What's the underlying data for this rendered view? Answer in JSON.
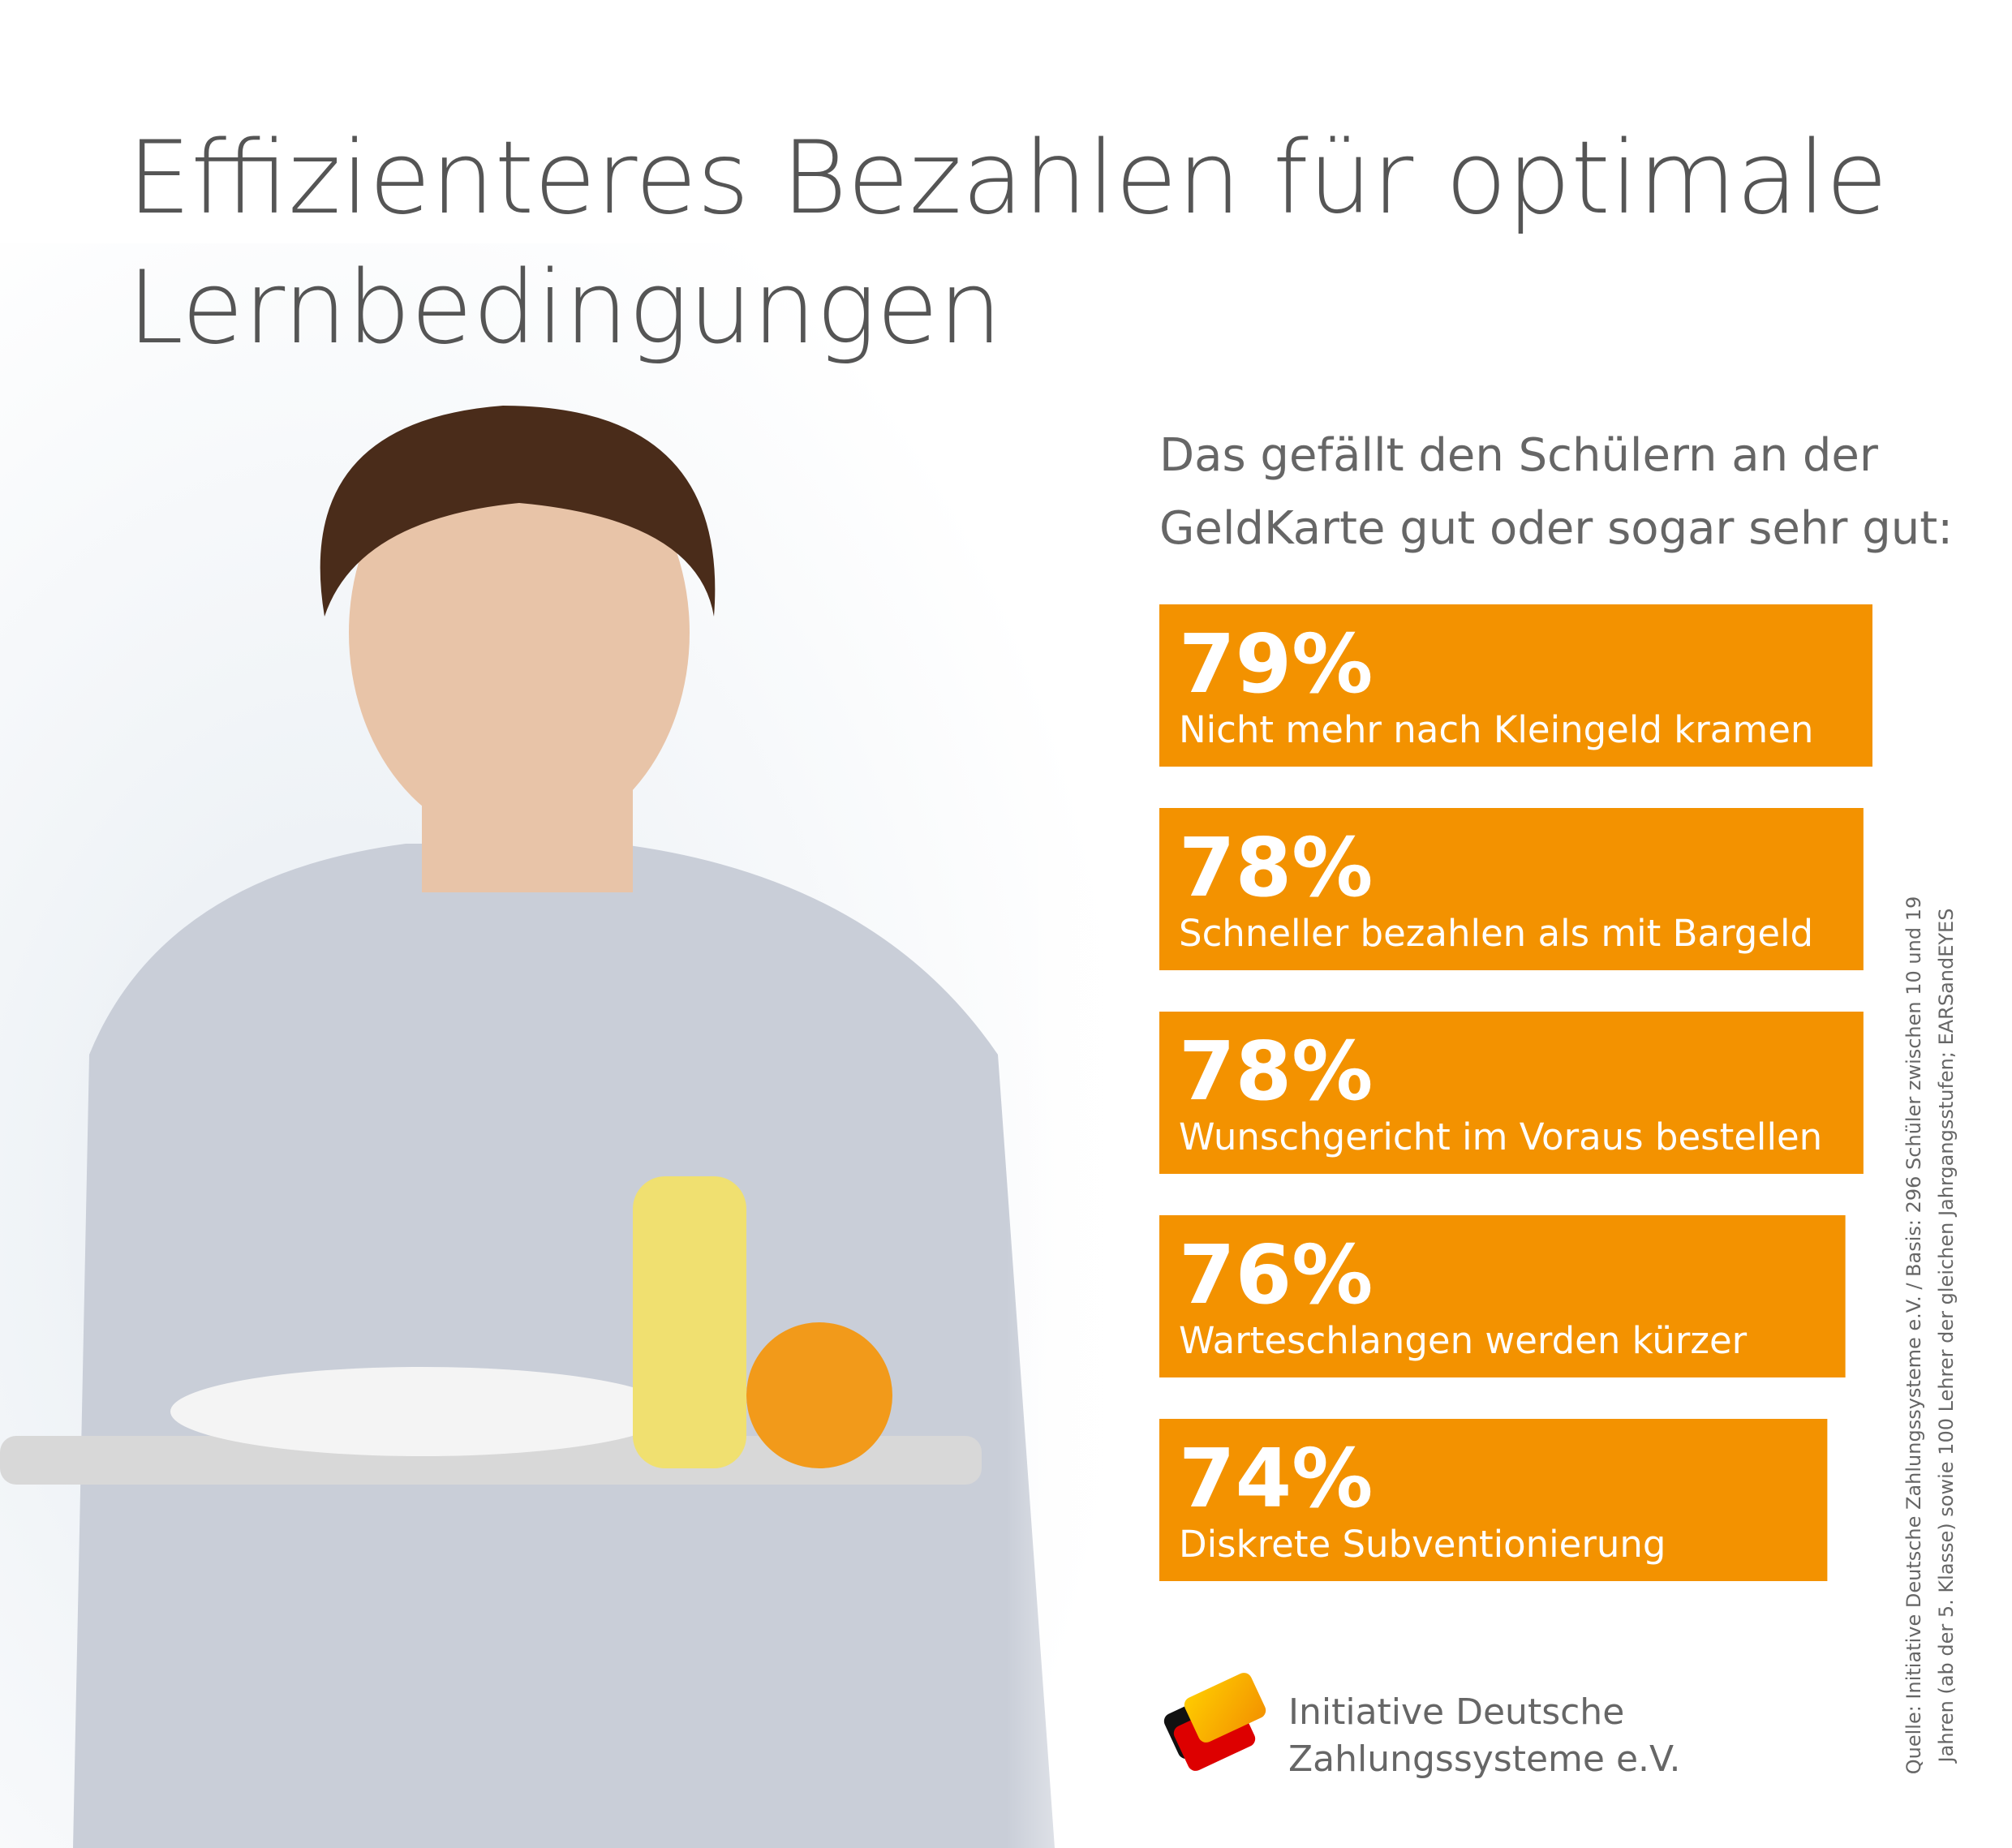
{
  "chart_data": {
    "type": "bar",
    "orientation": "horizontal",
    "title": [
      "Effizienteres Bezahlen für optimale",
      "Lernbedingungen"
    ],
    "subtitle": [
      "Das gefällt den Schülern an der",
      "GeldKarte gut oder sogar sehr gut:"
    ],
    "categories": [
      "Nicht mehr nach Kleingeld kramen",
      "Schneller bezahlen als mit Bargeld",
      "Wunschgericht im Voraus bestellen",
      "Warteschlangen werden kürzer",
      "Diskrete Subventionierung"
    ],
    "values": [
      79,
      78,
      78,
      76,
      74
    ],
    "value_labels": [
      "79%",
      "78%",
      "78%",
      "76%",
      "74%"
    ],
    "color": "#f39200",
    "logo_text": [
      "Initiative Deutsche",
      "Zahlungssysteme e.V."
    ],
    "source": [
      "Quelle: Initiative Deutsche Zahlungssysteme e.V. / Basis: 296 Schüler zwischen 10 und 19",
      "Jahren (ab der 5. Klasse) sowie 100 Lehrer der gleichen Jahrgangsstufen; EARSandEYES"
    ]
  }
}
